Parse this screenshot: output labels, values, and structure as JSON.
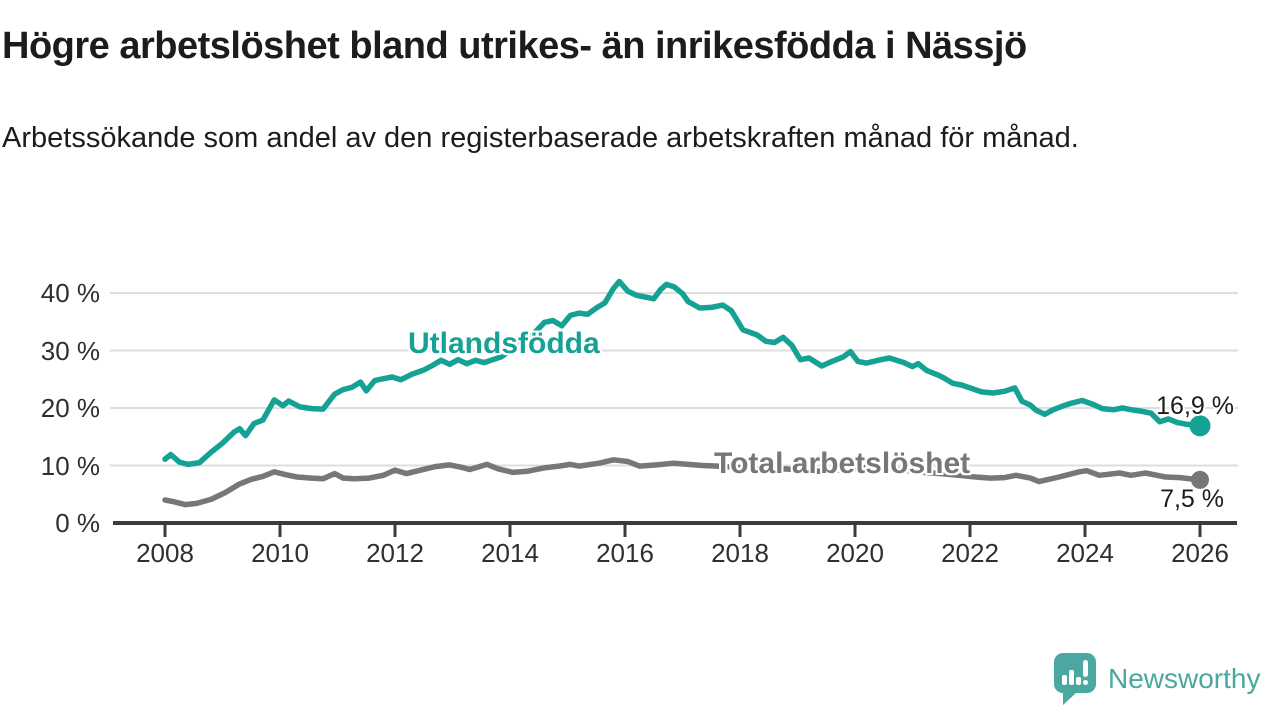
{
  "header": {
    "title": "Högre arbetslöshet bland utrikes- än inrikesfödda i Nässjö",
    "subtitle": "Arbetssökande som andel av den registerbaserade arbetskraften månad för månad."
  },
  "chart_data": {
    "type": "line",
    "grid": "horizontal",
    "legend_position": "inline-on-lines",
    "y_axis": {
      "unit": "%",
      "range": [
        0,
        44
      ],
      "ticks": [
        {
          "value": 0,
          "label": "0 %"
        },
        {
          "value": 10,
          "label": "10 %"
        },
        {
          "value": 20,
          "label": "20 %"
        },
        {
          "value": 30,
          "label": "30 %"
        },
        {
          "value": 40,
          "label": "40 %"
        }
      ]
    },
    "x_axis": {
      "range": [
        2007.6,
        2026.65
      ],
      "ticks": [
        {
          "year": 2008,
          "label": "2008"
        },
        {
          "year": 2010,
          "label": "2010"
        },
        {
          "year": 2012,
          "label": "2012"
        },
        {
          "year": 2014,
          "label": "2014"
        },
        {
          "year": 2016,
          "label": "2016"
        },
        {
          "year": 2018,
          "label": "2018"
        },
        {
          "year": 2020,
          "label": "2020"
        },
        {
          "year": 2022,
          "label": "2022"
        },
        {
          "year": 2024,
          "label": "2024"
        },
        {
          "year": 2026,
          "label": "2026"
        }
      ]
    },
    "series": [
      {
        "name": "Utlandsfödda",
        "color": "#16a195",
        "end_label": "16,9 %",
        "end_value": 16.9,
        "points": [
          [
            2008.0,
            11.1
          ],
          [
            2008.1,
            11.9
          ],
          [
            2008.25,
            10.6
          ],
          [
            2008.4,
            10.2
          ],
          [
            2008.6,
            10.5
          ],
          [
            2008.8,
            12.3
          ],
          [
            2009.0,
            13.9
          ],
          [
            2009.2,
            15.8
          ],
          [
            2009.3,
            16.4
          ],
          [
            2009.4,
            15.2
          ],
          [
            2009.55,
            17.3
          ],
          [
            2009.7,
            17.9
          ],
          [
            2009.9,
            21.4
          ],
          [
            2010.05,
            20.4
          ],
          [
            2010.15,
            21.2
          ],
          [
            2010.35,
            20.2
          ],
          [
            2010.55,
            19.9
          ],
          [
            2010.75,
            19.8
          ],
          [
            2010.95,
            22.4
          ],
          [
            2011.1,
            23.2
          ],
          [
            2011.25,
            23.6
          ],
          [
            2011.4,
            24.5
          ],
          [
            2011.5,
            23.0
          ],
          [
            2011.65,
            24.8
          ],
          [
            2011.8,
            25.1
          ],
          [
            2011.95,
            25.4
          ],
          [
            2012.1,
            24.9
          ],
          [
            2012.3,
            25.9
          ],
          [
            2012.5,
            26.6
          ],
          [
            2012.65,
            27.4
          ],
          [
            2012.8,
            28.3
          ],
          [
            2012.95,
            27.6
          ],
          [
            2013.1,
            28.4
          ],
          [
            2013.25,
            27.7
          ],
          [
            2013.4,
            28.3
          ],
          [
            2013.55,
            27.9
          ],
          [
            2013.7,
            28.4
          ],
          [
            2013.85,
            28.9
          ],
          [
            2014.0,
            30.0
          ],
          [
            2014.2,
            31.5
          ],
          [
            2014.4,
            32.8
          ],
          [
            2014.6,
            34.9
          ],
          [
            2014.75,
            35.2
          ],
          [
            2014.9,
            34.3
          ],
          [
            2015.05,
            36.1
          ],
          [
            2015.2,
            36.5
          ],
          [
            2015.35,
            36.3
          ],
          [
            2015.5,
            37.4
          ],
          [
            2015.65,
            38.3
          ],
          [
            2015.8,
            40.8
          ],
          [
            2015.9,
            42.0
          ],
          [
            2016.05,
            40.3
          ],
          [
            2016.2,
            39.6
          ],
          [
            2016.35,
            39.3
          ],
          [
            2016.5,
            39.0
          ],
          [
            2016.62,
            40.6
          ],
          [
            2016.72,
            41.5
          ],
          [
            2016.85,
            41.1
          ],
          [
            2017.0,
            39.9
          ],
          [
            2017.1,
            38.5
          ],
          [
            2017.3,
            37.4
          ],
          [
            2017.5,
            37.5
          ],
          [
            2017.7,
            37.9
          ],
          [
            2017.85,
            36.9
          ],
          [
            2018.05,
            33.6
          ],
          [
            2018.3,
            32.7
          ],
          [
            2018.45,
            31.6
          ],
          [
            2018.6,
            31.4
          ],
          [
            2018.75,
            32.3
          ],
          [
            2018.9,
            30.9
          ],
          [
            2019.05,
            28.4
          ],
          [
            2019.2,
            28.7
          ],
          [
            2019.42,
            27.3
          ],
          [
            2019.6,
            28.1
          ],
          [
            2019.8,
            28.9
          ],
          [
            2019.92,
            29.8
          ],
          [
            2020.05,
            28.1
          ],
          [
            2020.2,
            27.8
          ],
          [
            2020.45,
            28.4
          ],
          [
            2020.6,
            28.7
          ],
          [
            2020.85,
            27.9
          ],
          [
            2021.0,
            27.2
          ],
          [
            2021.1,
            27.7
          ],
          [
            2021.25,
            26.5
          ],
          [
            2021.45,
            25.7
          ],
          [
            2021.55,
            25.2
          ],
          [
            2021.7,
            24.3
          ],
          [
            2021.85,
            24.0
          ],
          [
            2022.0,
            23.5
          ],
          [
            2022.2,
            22.8
          ],
          [
            2022.4,
            22.6
          ],
          [
            2022.6,
            22.9
          ],
          [
            2022.78,
            23.5
          ],
          [
            2022.9,
            21.2
          ],
          [
            2023.05,
            20.5
          ],
          [
            2023.15,
            19.6
          ],
          [
            2023.3,
            18.9
          ],
          [
            2023.45,
            19.7
          ],
          [
            2023.6,
            20.3
          ],
          [
            2023.75,
            20.8
          ],
          [
            2023.95,
            21.3
          ],
          [
            2024.15,
            20.6
          ],
          [
            2024.3,
            19.9
          ],
          [
            2024.5,
            19.7
          ],
          [
            2024.65,
            20.0
          ],
          [
            2024.8,
            19.7
          ],
          [
            2025.0,
            19.4
          ],
          [
            2025.15,
            19.1
          ],
          [
            2025.3,
            17.6
          ],
          [
            2025.45,
            18.1
          ],
          [
            2025.6,
            17.5
          ],
          [
            2025.75,
            17.2
          ],
          [
            2026.0,
            16.9
          ]
        ]
      },
      {
        "name": "Total arbetslöshet",
        "color": "#76777b",
        "end_label": "7,5 %",
        "end_value": 7.5,
        "points": [
          [
            2008.0,
            4.0
          ],
          [
            2008.15,
            3.7
          ],
          [
            2008.35,
            3.2
          ],
          [
            2008.55,
            3.4
          ],
          [
            2008.8,
            4.1
          ],
          [
            2009.05,
            5.3
          ],
          [
            2009.3,
            6.8
          ],
          [
            2009.5,
            7.6
          ],
          [
            2009.7,
            8.1
          ],
          [
            2009.9,
            8.9
          ],
          [
            2010.1,
            8.4
          ],
          [
            2010.3,
            8.0
          ],
          [
            2010.55,
            7.8
          ],
          [
            2010.75,
            7.7
          ],
          [
            2010.95,
            8.6
          ],
          [
            2011.1,
            7.8
          ],
          [
            2011.3,
            7.7
          ],
          [
            2011.55,
            7.8
          ],
          [
            2011.8,
            8.3
          ],
          [
            2012.0,
            9.2
          ],
          [
            2012.2,
            8.6
          ],
          [
            2012.45,
            9.2
          ],
          [
            2012.7,
            9.8
          ],
          [
            2012.95,
            10.1
          ],
          [
            2013.15,
            9.7
          ],
          [
            2013.3,
            9.3
          ],
          [
            2013.6,
            10.2
          ],
          [
            2013.8,
            9.4
          ],
          [
            2014.05,
            8.8
          ],
          [
            2014.3,
            9.0
          ],
          [
            2014.6,
            9.6
          ],
          [
            2014.85,
            9.9
          ],
          [
            2015.05,
            10.2
          ],
          [
            2015.2,
            9.9
          ],
          [
            2015.55,
            10.4
          ],
          [
            2015.8,
            11.0
          ],
          [
            2016.05,
            10.7
          ],
          [
            2016.25,
            9.9
          ],
          [
            2016.55,
            10.1
          ],
          [
            2016.85,
            10.4
          ],
          [
            2017.1,
            10.2
          ],
          [
            2017.35,
            10.0
          ],
          [
            2017.6,
            9.9
          ],
          [
            2017.9,
            9.7
          ],
          [
            2018.2,
            9.5
          ],
          [
            2018.5,
            9.3
          ],
          [
            2018.8,
            9.4
          ],
          [
            2019.1,
            9.1
          ],
          [
            2019.4,
            9.0
          ],
          [
            2019.7,
            9.2
          ],
          [
            2020.0,
            9.4
          ],
          [
            2020.3,
            9.8
          ],
          [
            2020.6,
            9.5
          ],
          [
            2020.9,
            9.1
          ],
          [
            2021.2,
            8.8
          ],
          [
            2021.5,
            8.6
          ],
          [
            2021.8,
            8.3
          ],
          [
            2022.1,
            8.0
          ],
          [
            2022.35,
            7.8
          ],
          [
            2022.6,
            7.9
          ],
          [
            2022.8,
            8.3
          ],
          [
            2023.05,
            7.8
          ],
          [
            2023.2,
            7.2
          ],
          [
            2023.55,
            8.0
          ],
          [
            2023.9,
            8.9
          ],
          [
            2024.03,
            9.1
          ],
          [
            2024.25,
            8.3
          ],
          [
            2024.6,
            8.7
          ],
          [
            2024.8,
            8.3
          ],
          [
            2025.05,
            8.7
          ],
          [
            2025.4,
            8.0
          ],
          [
            2025.65,
            7.9
          ],
          [
            2026.0,
            7.5
          ]
        ]
      }
    ],
    "colors": {
      "gridline": "#dedede",
      "axis": "#3b3b3b",
      "tick_text": "#2f2f2f"
    }
  },
  "branding": {
    "logo_text": "Newsworthy",
    "logo_icon": "speech-bubble-bar-chart-exclamation",
    "logo_color": "#4aa8a0"
  }
}
